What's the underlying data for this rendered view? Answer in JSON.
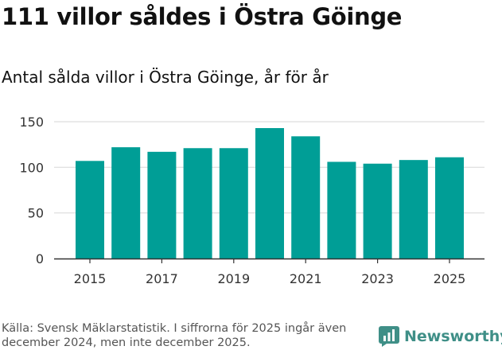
{
  "header": {
    "title": "111 villor såldes i Östra Göinge",
    "subtitle": "Antal sålda villor i Östra Göinge, år för år"
  },
  "footer": {
    "source_line1": "Källa: Svensk Mäklarstatistik. I siffrorna för 2025 ingår även",
    "source_line2": "december 2024, men inte december 2025.",
    "brand": "Newsworthy"
  },
  "colors": {
    "bar": "#009e96",
    "grid": "#dddddd",
    "axis": "#333333",
    "brand": "#3f8f87"
  },
  "chart_data": {
    "type": "bar",
    "title": "Antal sålda villor i Östra Göinge, år för år",
    "xlabel": "",
    "ylabel": "",
    "categories": [
      "2015",
      "2016",
      "2017",
      "2018",
      "2019",
      "2020",
      "2021",
      "2022",
      "2023",
      "2024",
      "2025"
    ],
    "values": [
      107,
      122,
      117,
      121,
      121,
      143,
      134,
      106,
      104,
      108,
      111
    ],
    "x_tick_labels": [
      "2015",
      "2017",
      "2019",
      "2021",
      "2023",
      "2025"
    ],
    "y_ticks": [
      0,
      50,
      100,
      150
    ],
    "ylim": [
      0,
      150
    ],
    "grid": true
  }
}
